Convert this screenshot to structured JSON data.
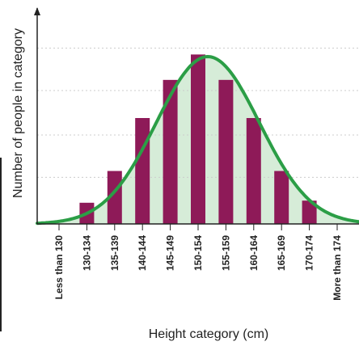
{
  "chart_data": {
    "type": "bar",
    "title": "",
    "xlabel": "Height category (cm)",
    "ylabel": "Number of people in category",
    "categories": [
      "Less than 130",
      "130-134",
      "135-139",
      "140-144",
      "145-149",
      "150-154",
      "155-159",
      "160-164",
      "165-169",
      "170-174",
      "More than 174"
    ],
    "series": [
      {
        "values": [
          0,
          1,
          2.5,
          5,
          6.8,
          8,
          6.8,
          5,
          2.5,
          1.1,
          0
        ]
      }
    ],
    "ylim": [
      0,
      10
    ],
    "grid": true,
    "curve": {
      "type": "normal",
      "mean_index": 5.35,
      "sd_index": 1.85,
      "peak": 7.9
    },
    "colors": {
      "bar": "#8e1a58",
      "curve": "#2b9e46",
      "fill": "#d6ecd8",
      "axis": "#222222",
      "grid": "#ffffff"
    }
  }
}
